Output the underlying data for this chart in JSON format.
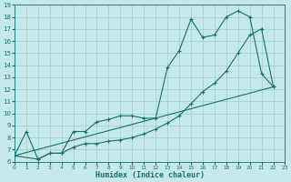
{
  "xlabel": "Humidex (Indice chaleur)",
  "bg_color": "#c5e8e8",
  "grid_color": "#9fcece",
  "line_color": "#1a6e6e",
  "xlim": [
    0,
    23
  ],
  "ylim": [
    6,
    19
  ],
  "xticks": [
    0,
    1,
    2,
    3,
    4,
    5,
    6,
    7,
    8,
    9,
    10,
    11,
    12,
    13,
    14,
    15,
    16,
    17,
    18,
    19,
    20,
    21,
    22,
    23
  ],
  "yticks": [
    6,
    7,
    8,
    9,
    10,
    11,
    12,
    13,
    14,
    15,
    16,
    17,
    18,
    19
  ],
  "line1_x": [
    0,
    1,
    2,
    3,
    4,
    5,
    6,
    7,
    8,
    9,
    10,
    11,
    12,
    13,
    14,
    15,
    16,
    17,
    18,
    19,
    20,
    21,
    22
  ],
  "line1_y": [
    6.5,
    8.5,
    6.2,
    6.7,
    6.7,
    8.5,
    8.5,
    9.3,
    9.5,
    9.8,
    9.8,
    9.6,
    9.6,
    13.8,
    15.2,
    17.8,
    16.3,
    16.5,
    18.0,
    18.5,
    18.0,
    13.3,
    12.2
  ],
  "line2_x": [
    0,
    2,
    3,
    4,
    5,
    6,
    7,
    8,
    9,
    10,
    11,
    12,
    13,
    14,
    15,
    16,
    17,
    18,
    19,
    20,
    21,
    22
  ],
  "line2_y": [
    6.5,
    6.2,
    6.7,
    6.7,
    7.2,
    7.5,
    7.5,
    7.7,
    7.8,
    8.0,
    8.3,
    8.7,
    9.2,
    9.8,
    10.8,
    11.8,
    12.5,
    13.5,
    15.0,
    16.5,
    17.0,
    12.2
  ],
  "line3_x": [
    0,
    22
  ],
  "line3_y": [
    6.5,
    12.2
  ]
}
